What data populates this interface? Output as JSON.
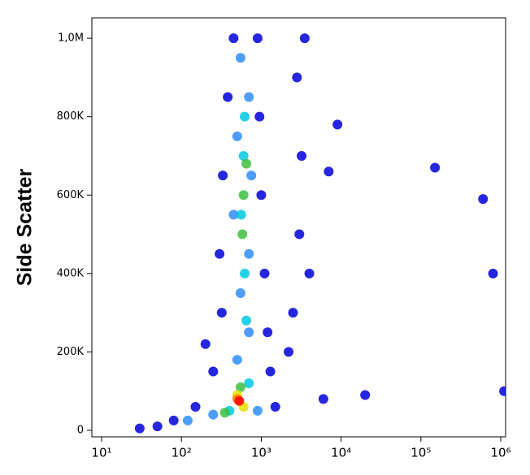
{
  "chart_data": {
    "type": "scatter",
    "y_label": "Side Scatter",
    "x_scale": "log",
    "xlim": [
      7.55,
      1150000
    ],
    "ylim": [
      -16600,
      1052000
    ],
    "xticks": [
      {
        "value": 10,
        "label": "10¹"
      },
      {
        "value": 100,
        "label": "10²"
      },
      {
        "value": 1000,
        "label": "10³"
      },
      {
        "value": 10000,
        "label": "10⁴"
      },
      {
        "value": 100000,
        "label": "10⁵"
      },
      {
        "value": 1000000,
        "label": "10⁶"
      }
    ],
    "yticks": [
      0,
      {
        "value": 200000,
        "label": "200K"
      },
      {
        "value": 400000,
        "label": "400K"
      },
      {
        "value": 600000,
        "label": "600K"
      },
      {
        "value": 800000,
        "label": "800K"
      },
      {
        "value": 1000000,
        "label": "1,0M"
      }
    ],
    "x": [
      450,
      900,
      380,
      950,
      330,
      1000,
      300,
      1100,
      320,
      1200,
      250,
      1300,
      150,
      80,
      50,
      1500,
      30,
      2800,
      3200,
      3000,
      2500,
      3500,
      4000,
      2200,
      6000,
      20000,
      150000,
      600000,
      800000,
      1100000,
      7000,
      9000,
      200,
      550,
      700,
      500,
      750,
      450,
      700,
      550,
      700,
      500,
      250,
      900,
      120,
      620,
      600,
      560,
      620,
      650,
      400,
      700,
      650,
      600,
      580,
      550,
      350,
      500,
      600,
      500,
      530
    ],
    "values": [
      1000000,
      1000000,
      850000,
      800000,
      650000,
      600000,
      450000,
      400000,
      300000,
      250000,
      150000,
      150000,
      60000,
      25000,
      10000,
      60000,
      5000,
      900000,
      700000,
      500000,
      300000,
      1000000,
      400000,
      200000,
      80000,
      90000,
      670000,
      590000,
      400000,
      100000,
      660000,
      780000,
      220000,
      950000,
      850000,
      750000,
      650000,
      550000,
      450000,
      350000,
      250000,
      180000,
      40000,
      50000,
      25000,
      800000,
      700000,
      550000,
      400000,
      280000,
      50000,
      120000,
      680000,
      600000,
      500000,
      110000,
      45000,
      90000,
      60000,
      80000,
      75000
    ],
    "colors": [
      "#0000d8",
      "#0000d8",
      "#0000d8",
      "#0000d8",
      "#0000d8",
      "#0000d8",
      "#0000d8",
      "#0000d8",
      "#0000d8",
      "#0000d8",
      "#0000d8",
      "#0000d8",
      "#0000d8",
      "#0000d8",
      "#0000d8",
      "#0000d8",
      "#0000d8",
      "#0000d8",
      "#0000d8",
      "#0000d8",
      "#0000d8",
      "#0000d8",
      "#0000d8",
      "#0000d8",
      "#0000d8",
      "#0000d8",
      "#0000d8",
      "#0000d8",
      "#0000d8",
      "#0000d8",
      "#0000d8",
      "#0000d8",
      "#0000d8",
      "#2f8cff",
      "#2f8cff",
      "#2f8cff",
      "#2f8cff",
      "#2f8cff",
      "#2f8cff",
      "#2f8cff",
      "#2f8cff",
      "#2f8cff",
      "#2f8cff",
      "#2f8cff",
      "#2f8cff",
      "#00c8e0",
      "#00c8e0",
      "#00c8e0",
      "#00c8e0",
      "#00c8e0",
      "#00c8e0",
      "#00c8e0",
      "#3cc040",
      "#3cc040",
      "#3cc040",
      "#3cc040",
      "#3cc040",
      "#e8e000",
      "#e8e000",
      "#ff8000",
      "#ff0000"
    ]
  }
}
